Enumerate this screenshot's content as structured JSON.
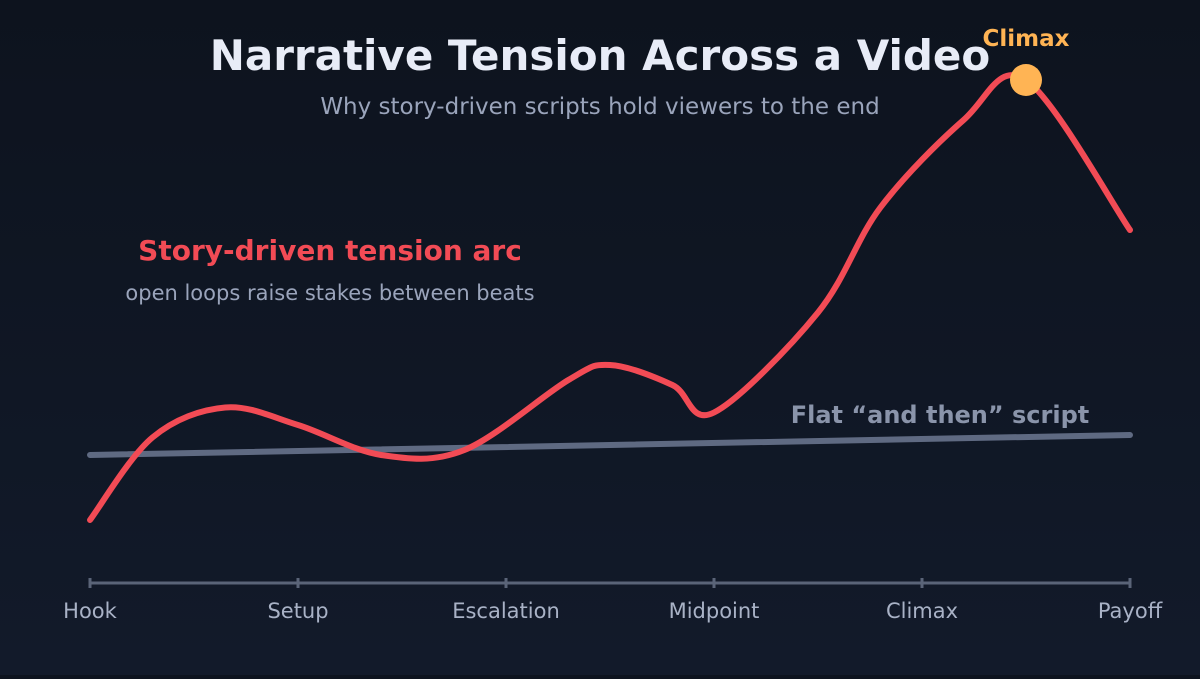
{
  "chart_data": {
    "type": "line",
    "title": "Narrative Tension Across a Video",
    "subtitle": "Why story-driven scripts hold viewers to the end",
    "categories": [
      "Hook",
      "Setup",
      "Escalation",
      "Midpoint",
      "Climax",
      "Payoff"
    ],
    "grid": false,
    "colors": {
      "title": "#e8ecf7",
      "subtitle": "#9aa4bb",
      "story": "#f24b55",
      "flat": "#5f6a82",
      "flat_label": "#8a94aa",
      "axis": "#5a6478",
      "tick_label": "#a9b2c6",
      "climax": "#ffb454",
      "note": "#9aa4bb"
    },
    "series": [
      {
        "name": "Story-driven tension arc",
        "note": "open loops raise stakes between beats",
        "x": [
          0,
          0.3,
          0.65,
          1.0,
          1.4,
          1.8,
          2.3,
          2.5,
          2.8,
          3.0,
          3.5,
          3.8,
          4.2,
          4.5,
          5.0
        ],
        "y": [
          0.22,
          0.55,
          0.67,
          0.6,
          0.48,
          0.5,
          0.78,
          0.84,
          0.76,
          0.65,
          1.05,
          1.47,
          1.82,
          1.98,
          1.38
        ]
      },
      {
        "name": "Flat “and then” script",
        "x": [
          0,
          5.0
        ],
        "y": [
          0.48,
          0.56
        ]
      }
    ],
    "annotations": [
      {
        "text": "Climax",
        "x": 4.5,
        "y": 1.98
      }
    ]
  }
}
